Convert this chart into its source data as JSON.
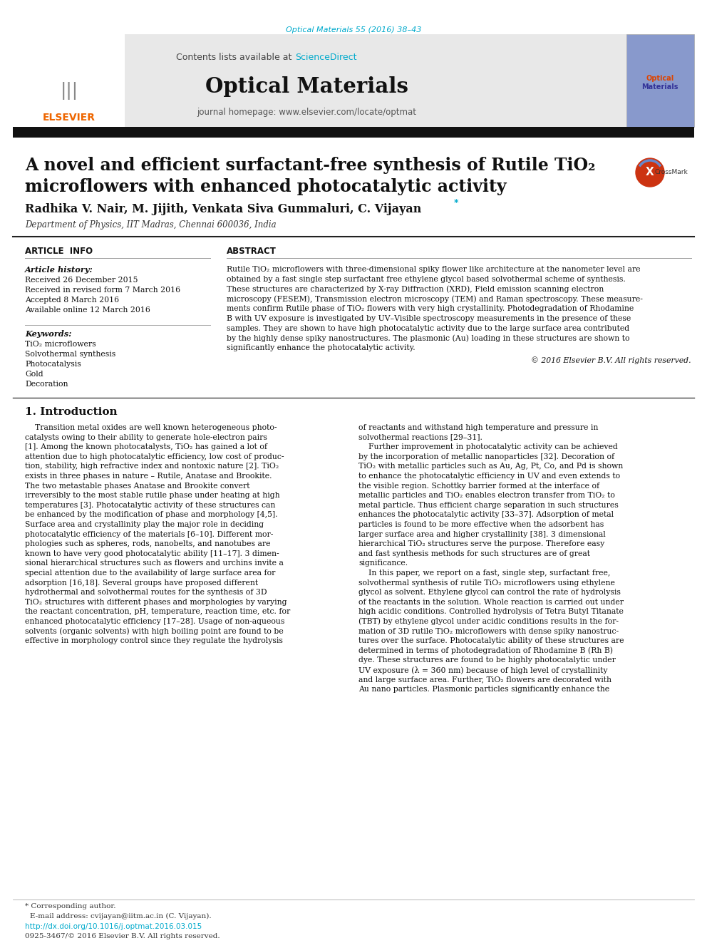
{
  "page_bg": "#ffffff",
  "journal_ref": "Optical Materials 55 (2016) 38–43",
  "journal_ref_color": "#00aacc",
  "sciencedirect_color": "#00aacc",
  "journal_name": "Optical Materials",
  "journal_homepage": "journal homepage: www.elsevier.com/locate/optmat",
  "header_bg": "#e8e8e8",
  "title_line1": "A novel and efficient surfactant-free synthesis of Rutile TiO₂",
  "title_line2": "microflowers with enhanced photocatalytic activity",
  "authors": "Radhika V. Nair, M. Jijith, Venkata Siva Gummaluri, C. Vijayan",
  "affiliation": "Department of Physics, IIT Madras, Chennai 600036, India",
  "article_info_header": "ARTICLE  INFO",
  "abstract_header": "ABSTRACT",
  "article_history_label": "Article history:",
  "received1": "Received 26 December 2015",
  "received2": "Received in revised form 7 March 2016",
  "accepted": "Accepted 8 March 2016",
  "available": "Available online 12 March 2016",
  "keywords_label": "Keywords:",
  "keyword1": "TiO₂ microflowers",
  "keyword2": "Solvothermal synthesis",
  "keyword3": "Photocatalysis",
  "keyword4": "Gold",
  "keyword5": "Decoration",
  "copyright": "© 2016 Elsevier B.V. All rights reserved.",
  "intro_header": "1. Introduction",
  "footer_note1": "* Corresponding author.",
  "footer_note2": "E-mail address: cvijayan@iitm.ac.in (C. Vijayan).",
  "footer_doi": "http://dx.doi.org/10.1016/j.optmat.2016.03.015",
  "footer_issn": "0925-3467/© 2016 Elsevier B.V. All rights reserved.",
  "abstract_lines": [
    "Rutile TiO₂ microflowers with three-dimensional spiky flower like architecture at the nanometer level are",
    "obtained by a fast single step surfactant free ethylene glycol based solvothermal scheme of synthesis.",
    "These structures are characterized by X-ray Diffraction (XRD), Field emission scanning electron",
    "microscopy (FESEM), Transmission electron microscopy (TEM) and Raman spectroscopy. These measure-",
    "ments confirm Rutile phase of TiO₂ flowers with very high crystallinity. Photodegradation of Rhodamine",
    "B with UV exposure is investigated by UV–Visible spectroscopy measurements in the presence of these",
    "samples. They are shown to have high photocatalytic activity due to the large surface area contributed",
    "by the highly dense spiky nanostructures. The plasmonic (Au) loading in these structures are shown to",
    "significantly enhance the photocatalytic activity."
  ],
  "col1_intro": [
    "    Transition metal oxides are well known heterogeneous photo-",
    "catalysts owing to their ability to generate hole-electron pairs",
    "[1]. Among the known photocatalysts, TiO₂ has gained a lot of",
    "attention due to high photocatalytic efficiency, low cost of produc-",
    "tion, stability, high refractive index and nontoxic nature [2]. TiO₂",
    "exists in three phases in nature – Rutile, Anatase and Brookite.",
    "The two metastable phases Anatase and Brookite convert",
    "irreversibly to the most stable rutile phase under heating at high",
    "temperatures [3]. Photocatalytic activity of these structures can",
    "be enhanced by the modification of phase and morphology [4,5].",
    "Surface area and crystallinity play the major role in deciding",
    "photocatalytic efficiency of the materials [6–10]. Different mor-",
    "phologies such as spheres, rods, nanobelts, and nanotubes are",
    "known to have very good photocatalytic ability [11–17]. 3 dimen-",
    "sional hierarchical structures such as flowers and urchins invite a",
    "special attention due to the availability of large surface area for",
    "adsorption [16,18]. Several groups have proposed different",
    "hydrothermal and solvothermal routes for the synthesis of 3D",
    "TiO₂ structures with different phases and morphologies by varying",
    "the reactant concentration, pH, temperature, reaction time, etc. for",
    "enhanced photocatalytic efficiency [17–28]. Usage of non-aqueous",
    "solvents (organic solvents) with high boiling point are found to be",
    "effective in morphology control since they regulate the hydrolysis"
  ],
  "col2_intro": [
    "of reactants and withstand high temperature and pressure in",
    "solvothermal reactions [29–31].",
    "    Further improvement in photocatalytic activity can be achieved",
    "by the incorporation of metallic nanoparticles [32]. Decoration of",
    "TiO₂ with metallic particles such as Au, Ag, Pt, Co, and Pd is shown",
    "to enhance the photocatalytic efficiency in UV and even extends to",
    "the visible region. Schottky barrier formed at the interface of",
    "metallic particles and TiO₂ enables electron transfer from TiO₂ to",
    "metal particle. Thus efficient charge separation in such structures",
    "enhances the photocatalytic activity [33–37]. Adsorption of metal",
    "particles is found to be more effective when the adsorbent has",
    "larger surface area and higher crystallinity [38]. 3 dimensional",
    "hierarchical TiO₂ structures serve the purpose. Therefore easy",
    "and fast synthesis methods for such structures are of great",
    "significance.",
    "    In this paper, we report on a fast, single step, surfactant free,",
    "solvothermal synthesis of rutile TiO₂ microflowers using ethylene",
    "glycol as solvent. Ethylene glycol can control the rate of hydrolysis",
    "of the reactants in the solution. Whole reaction is carried out under",
    "high acidic conditions. Controlled hydrolysis of Tetra Butyl Titanate",
    "(TBT) by ethylene glycol under acidic conditions results in the for-",
    "mation of 3D rutile TiO₂ microflowers with dense spiky nanostruc-",
    "tures over the surface. Photocatalytic ability of these structures are",
    "determined in terms of photodegradation of Rhodamine B (Rh B)",
    "dye. These structures are found to be highly photocatalytic under",
    "UV exposure (λ = 360 nm) because of high level of crystallinity",
    "and large surface area. Further, TiO₂ flowers are decorated with",
    "Au nano particles. Plasmonic particles significantly enhance the"
  ]
}
